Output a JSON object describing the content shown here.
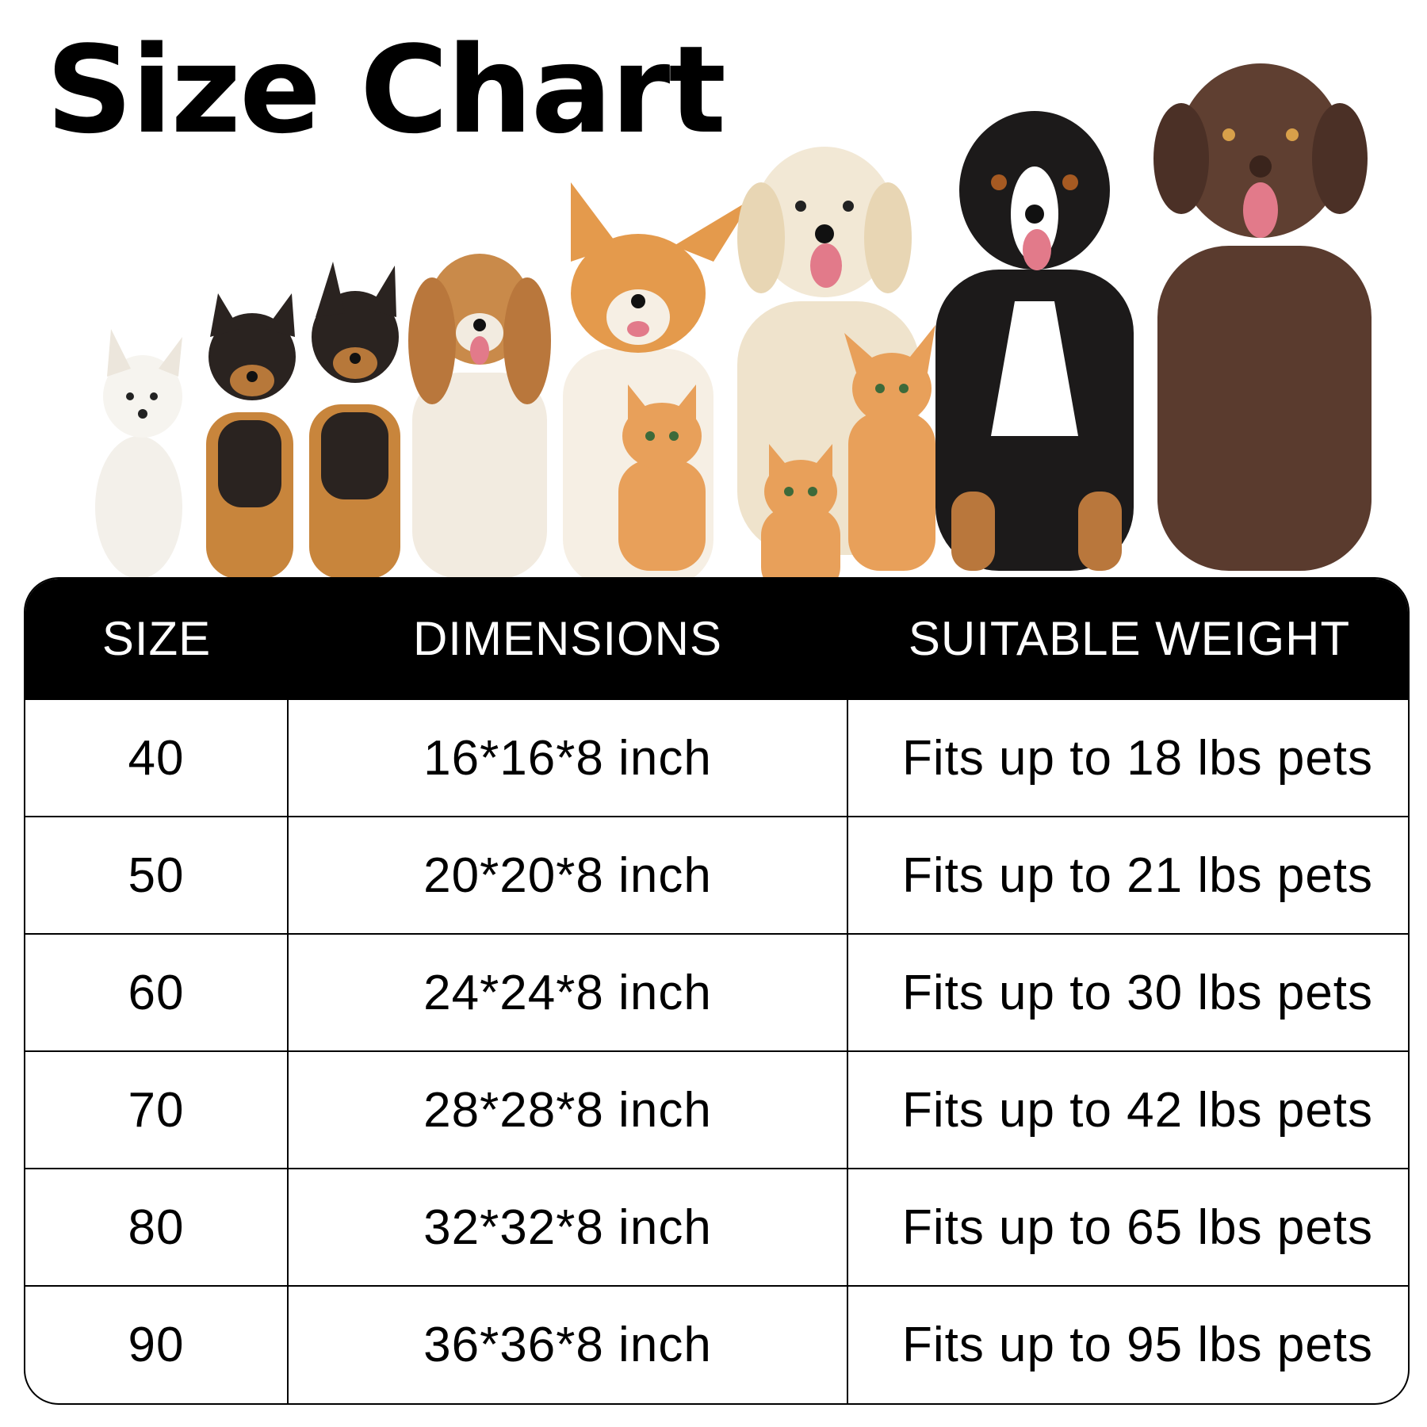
{
  "title": "Size Chart",
  "table": {
    "headers": [
      "SIZE",
      "DIMENSIONS",
      "SUITABLE WEIGHT"
    ],
    "rows": [
      {
        "size": "40",
        "dimensions": "16*16*8 inch",
        "weight": "Fits up to 18 lbs pets"
      },
      {
        "size": "50",
        "dimensions": "20*20*8 inch",
        "weight": "Fits up to 21 lbs pets"
      },
      {
        "size": "60",
        "dimensions": "24*24*8 inch",
        "weight": "Fits up to 30 lbs pets"
      },
      {
        "size": "70",
        "dimensions": "28*28*8 inch",
        "weight": "Fits up to 42 lbs pets"
      },
      {
        "size": "80",
        "dimensions": "32*32*8 inch",
        "weight": "Fits up to 65 lbs pets"
      },
      {
        "size": "90",
        "dimensions": "36*36*8 inch",
        "weight": "Fits up to 95 lbs pets"
      }
    ]
  },
  "colors": {
    "header_bg": "#000000",
    "header_text": "#ffffff",
    "cream": "#f3f0ea",
    "tan": "#c8853c",
    "ginger": "#e49a4c",
    "black_fur": "#1c1a1a",
    "brown_lab": "#5a3b2e",
    "golden": "#efe3cc",
    "spaniel": "#c98a4a"
  },
  "pets_icons": [
    "white-puppy-icon",
    "shepherd-puppy-icon",
    "shepherd-puppy-icon",
    "spaniel-dog-icon",
    "corgi-dog-icon",
    "golden-retriever-icon",
    "bernese-dog-icon",
    "chocolate-lab-icon",
    "kitten-icon"
  ]
}
